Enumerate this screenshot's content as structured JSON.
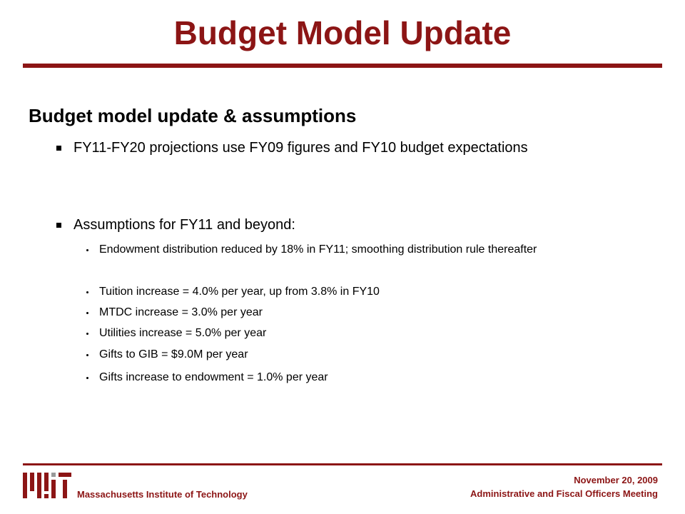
{
  "title": "Budget Model Update",
  "heading": "Budget model update & assumptions",
  "bullets": [
    {
      "text": "FY11-FY20 projections use FY09 figures and FY10 budget expectations",
      "sub": []
    },
    {
      "text": "Assumptions for FY11 and beyond:",
      "sub": [
        "Endowment distribution reduced by 18% in FY11; smoothing distribution rule thereafter",
        "Tuition increase = 4.0% per year, up from 3.8% in FY10",
        "MTDC increase = 3.0% per year",
        "Utilities increase = 5.0% per year",
        "Gifts to GIB = $9.0M per year",
        "Gifts increase to endowment = 1.0% per year"
      ]
    }
  ],
  "footer": {
    "organization": "Massachusetts Institute of Technology",
    "date": "November 20, 2009",
    "meeting": "Administrative and Fiscal Officers Meeting"
  }
}
